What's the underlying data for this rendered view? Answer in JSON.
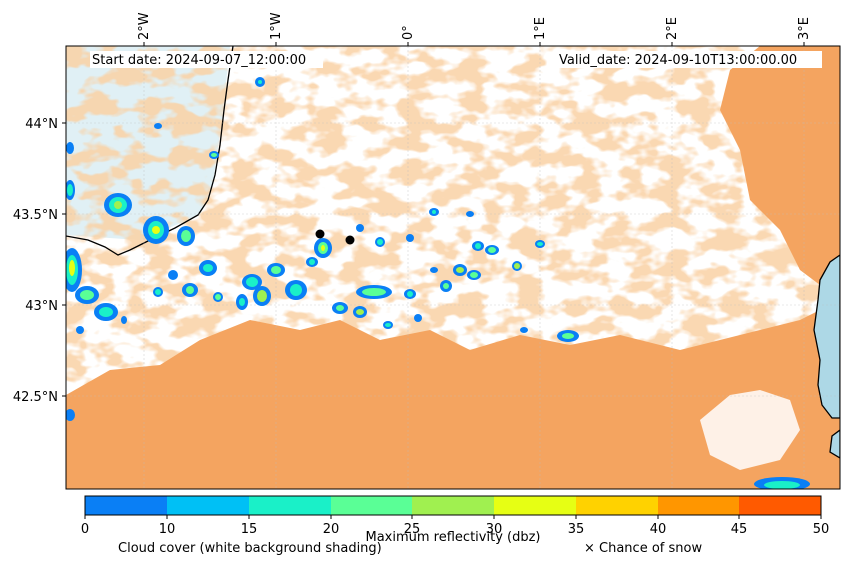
{
  "map": {
    "start_date": "Start date: 2024-09-07_12:00:00",
    "valid_date": "Valid_date: 2024-09-10T13:00:00.00",
    "lon_ticks": [
      "2°W",
      "1°W",
      "0°",
      "1°E",
      "2°E",
      "3°E"
    ],
    "lat_ticks": [
      "44°N",
      "43.5°N",
      "43°N",
      "42.5°N"
    ],
    "colors": {
      "cloud_orange": "#f4a460",
      "sea": "#add8e6",
      "coast": "#000000"
    }
  },
  "colorbar": {
    "ticks": [
      "0",
      "10",
      "15",
      "20",
      "25",
      "30",
      "35",
      "40",
      "45",
      "50"
    ],
    "colors": [
      "#0a7ff5",
      "#00c0f5",
      "#1af0c8",
      "#5aff96",
      "#a0f050",
      "#e6ff14",
      "#ffd200",
      "#ff9600",
      "#ff5a00"
    ],
    "title": "Maximum reflectivity (dbz)",
    "left_note": "Cloud cover (white background shading)",
    "right_note": "× Chance of snow"
  }
}
